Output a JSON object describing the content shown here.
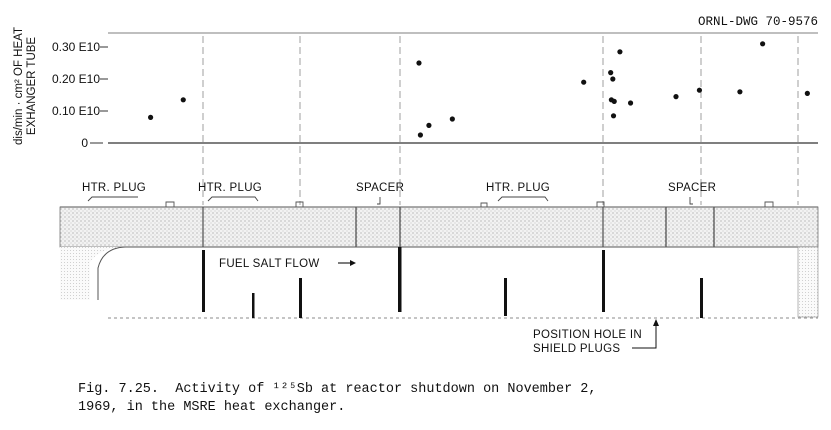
{
  "drawing_number": "ORNL-DWG 70-9576",
  "chart_data": {
    "type": "scatter",
    "ylabel_line1": "dis/min · cm² OF HEAT",
    "ylabel_line2": "EXHANGER TUBE",
    "y_ticks": [
      {
        "value": 0,
        "label": "0"
      },
      {
        "value": 0.1,
        "label": "0.10 E10"
      },
      {
        "value": 0.2,
        "label": "0.20 E10"
      },
      {
        "value": 0.3,
        "label": "0.30 E10"
      }
    ],
    "ylim": [
      0,
      0.3
    ],
    "x_range": [
      0,
      1
    ],
    "grid": "vertical guide lines at structure positions",
    "points": [
      {
        "x": 0.06,
        "y": 0.08
      },
      {
        "x": 0.106,
        "y": 0.135
      },
      {
        "x": 0.438,
        "y": 0.25
      },
      {
        "x": 0.44,
        "y": 0.025
      },
      {
        "x": 0.452,
        "y": 0.055
      },
      {
        "x": 0.485,
        "y": 0.075
      },
      {
        "x": 0.67,
        "y": 0.19
      },
      {
        "x": 0.708,
        "y": 0.22
      },
      {
        "x": 0.709,
        "y": 0.135
      },
      {
        "x": 0.711,
        "y": 0.2
      },
      {
        "x": 0.712,
        "y": 0.085
      },
      {
        "x": 0.713,
        "y": 0.13
      },
      {
        "x": 0.721,
        "y": 0.285
      },
      {
        "x": 0.736,
        "y": 0.125
      },
      {
        "x": 0.8,
        "y": 0.145
      },
      {
        "x": 0.833,
        "y": 0.165
      },
      {
        "x": 0.89,
        "y": 0.16
      },
      {
        "x": 0.922,
        "y": 0.31
      },
      {
        "x": 0.985,
        "y": 0.155
      }
    ]
  },
  "structure": {
    "htr_plug_1": "HTR. PLUG",
    "htr_plug_2": "HTR. PLUG",
    "spacer_1": "SPACER",
    "htr_plug_3": "HTR. PLUG",
    "spacer_2": "SPACER",
    "flow_label": "FUEL SALT FLOW",
    "position_hole_line1": "POSITION HOLE IN",
    "position_hole_line2": "SHIELD PLUGS"
  },
  "caption": "Fig. 7.25.  Activity of ¹²⁵Sb at reactor shutdown on November 2,\n1969, in the MSRE heat exchanger."
}
